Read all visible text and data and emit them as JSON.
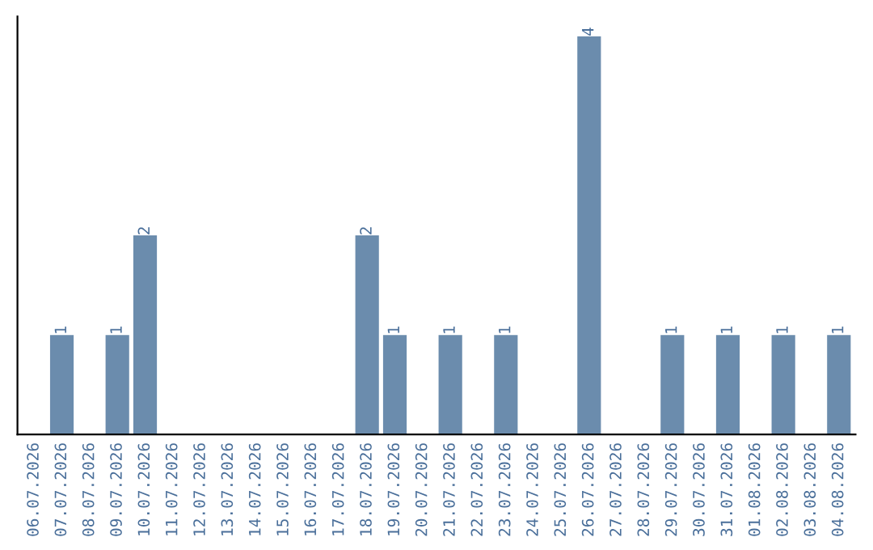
{
  "chart_data": {
    "type": "bar",
    "categories": [
      "06.07.2026",
      "07.07.2026",
      "08.07.2026",
      "09.07.2026",
      "10.07.2026",
      "11.07.2026",
      "12.07.2026",
      "13.07.2026",
      "14.07.2026",
      "15.07.2026",
      "16.07.2026",
      "17.07.2026",
      "18.07.2026",
      "19.07.2026",
      "20.07.2026",
      "21.07.2026",
      "22.07.2026",
      "23.07.2026",
      "24.07.2026",
      "25.07.2026",
      "26.07.2026",
      "27.07.2026",
      "28.07.2026",
      "29.07.2026",
      "30.07.2026",
      "31.07.2026",
      "01.08.2026",
      "02.08.2026",
      "03.08.2026",
      "04.08.2026"
    ],
    "values": [
      0,
      1,
      0,
      1,
      2,
      0,
      0,
      0,
      0,
      0,
      0,
      0,
      2,
      1,
      0,
      1,
      0,
      1,
      0,
      0,
      4,
      0,
      0,
      1,
      0,
      1,
      0,
      1,
      0,
      1
    ],
    "value_labels": [
      null,
      "1",
      null,
      "1",
      "2",
      null,
      null,
      null,
      null,
      null,
      null,
      null,
      "2",
      "1",
      null,
      "1",
      null,
      "1",
      null,
      null,
      "4",
      null,
      null,
      "1",
      null,
      "1",
      null,
      "1",
      null,
      "1"
    ],
    "color": "#6b8cad",
    "tick_labels": "x",
    "grid": false,
    "legend": false
  }
}
